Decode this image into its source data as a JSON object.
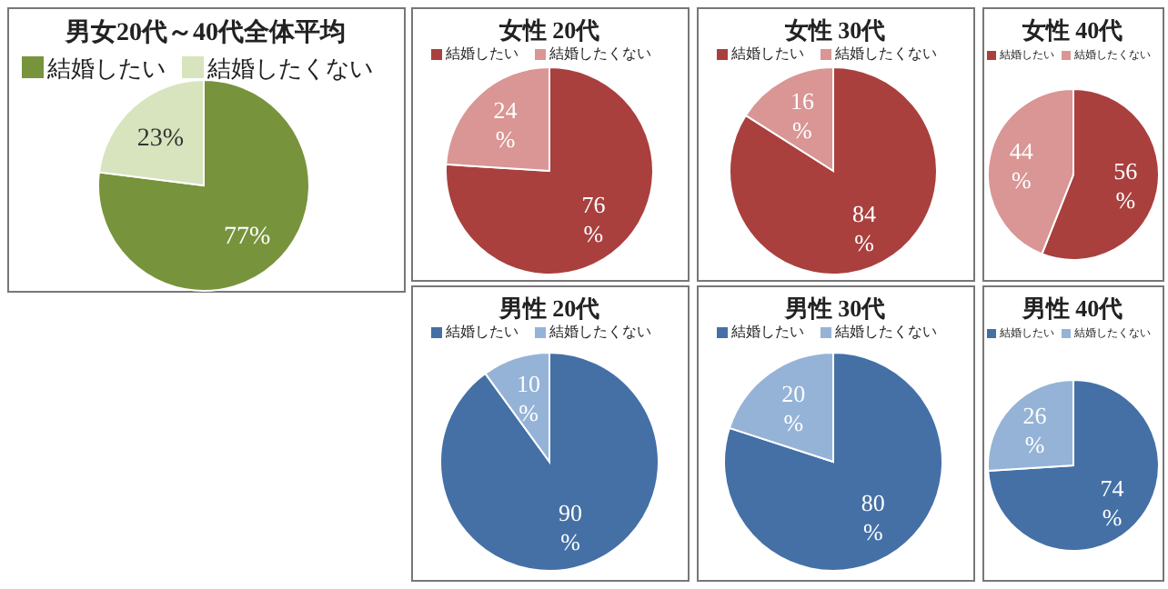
{
  "chart_data": [
    {
      "type": "pie",
      "title": "男女20代～40代全体平均",
      "categories": [
        "結婚したい",
        "結婚したくない"
      ],
      "values": [
        77,
        23
      ],
      "value_labels": [
        "77%",
        "23%"
      ],
      "colors": [
        "#77933c",
        "#d7e4bd"
      ],
      "legend": "top"
    },
    {
      "type": "pie",
      "title": "女性 20代",
      "categories": [
        "結婚したい",
        "結婚したくない"
      ],
      "values": [
        76,
        24
      ],
      "value_labels": [
        "76 %",
        "24 %"
      ],
      "colors": [
        "#a9403e",
        "#d99694"
      ],
      "legend": "top"
    },
    {
      "type": "pie",
      "title": "女性 30代",
      "categories": [
        "結婚したい",
        "結婚したくない"
      ],
      "values": [
        84,
        16
      ],
      "value_labels": [
        "84 %",
        "16 %"
      ],
      "colors": [
        "#a9403e",
        "#d99694"
      ],
      "legend": "top"
    },
    {
      "type": "pie",
      "title": "女性 40代",
      "categories": [
        "結婚したい",
        "結婚したくない"
      ],
      "values": [
        56,
        44
      ],
      "value_labels": [
        "56 %",
        "44 %"
      ],
      "colors": [
        "#a9403e",
        "#d99694"
      ],
      "legend": "top"
    },
    {
      "type": "pie",
      "title": "男性 20代",
      "categories": [
        "結婚したい",
        "結婚したくない"
      ],
      "values": [
        90,
        10
      ],
      "value_labels": [
        "90 %",
        "10 %"
      ],
      "colors": [
        "#4470a6",
        "#95b3d7"
      ],
      "legend": "top"
    },
    {
      "type": "pie",
      "title": "男性 30代",
      "categories": [
        "結婚したい",
        "結婚したくない"
      ],
      "values": [
        80,
        20
      ],
      "value_labels": [
        "80 %",
        "20 %"
      ],
      "colors": [
        "#4470a6",
        "#95b3d7"
      ],
      "legend": "top"
    },
    {
      "type": "pie",
      "title": "男性 40代",
      "categories": [
        "結婚したい",
        "結婚したくない"
      ],
      "values": [
        74,
        26
      ],
      "value_labels": [
        "74 %",
        "26 %"
      ],
      "colors": [
        "#4470a6",
        "#95b3d7"
      ],
      "legend": "top"
    }
  ]
}
